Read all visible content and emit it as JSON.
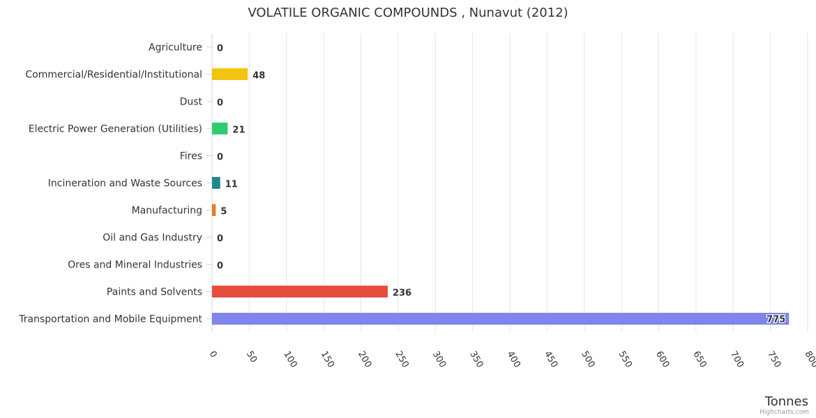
{
  "chart_data": {
    "type": "bar",
    "orientation": "horizontal",
    "title": "VOLATILE ORGANIC COMPOUNDS , Nunavut (2012)",
    "xlabel": "Tonnes",
    "ylabel": "",
    "categories": [
      "Agriculture",
      "Commercial/Residential/Institutional",
      "Dust",
      "Electric Power Generation (Utilities)",
      "Fires",
      "Incineration and Waste Sources",
      "Manufacturing",
      "Oil and Gas Industry",
      "Ores and Mineral Industries",
      "Paints and Solvents",
      "Transportation and Mobile Equipment"
    ],
    "values": [
      0,
      48,
      0,
      21,
      0,
      11,
      5,
      0,
      0,
      236,
      775
    ],
    "data_labels": [
      "0",
      "48",
      "0",
      "21",
      "0",
      "11",
      "5",
      "0",
      "0",
      "236",
      "775"
    ],
    "colors": [
      "#2f7ed8",
      "#f1c40f",
      "#2c3e50",
      "#2ecc71",
      "#9b59b6",
      "#1f8a89",
      "#e67e22",
      "#555555",
      "#7f8c8d",
      "#e74c3c",
      "#8085e9"
    ],
    "xlim": [
      0,
      800
    ],
    "ticks": [
      0,
      50,
      100,
      150,
      200,
      250,
      300,
      350,
      400,
      450,
      500,
      550,
      600,
      650,
      700,
      750,
      800
    ],
    "tick_labels": [
      "0",
      "50",
      "100",
      "150",
      "200",
      "250",
      "300",
      "350",
      "400",
      "450",
      "500",
      "550",
      "600",
      "650",
      "700",
      "750",
      "800"
    ],
    "grid": true,
    "legend": "none"
  },
  "credits": "Highcharts.com"
}
